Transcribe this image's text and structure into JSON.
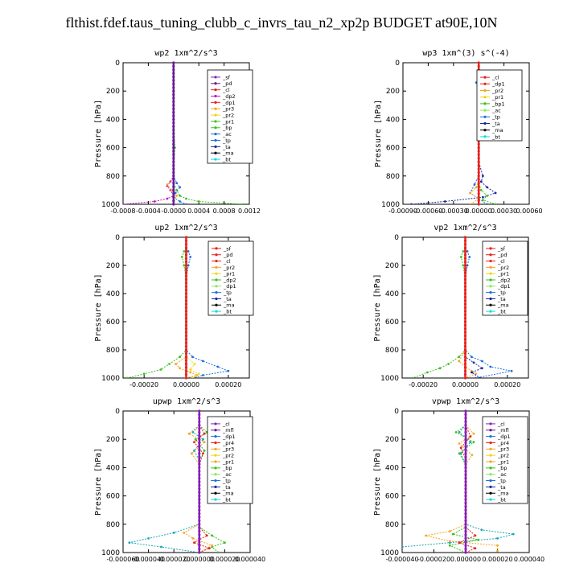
{
  "page": {
    "title": "flthist.fdef.taus_tuning_clubb_c_invrs_tau_n2_xp2p  BUDGET at90E,10N"
  },
  "colors": {
    "red": "#e8221c",
    "purple": "#8a1fb5",
    "dark_purple": "#6a1a9a",
    "orange": "#f5a623",
    "yellow": "#f0d51a",
    "green": "#3ac21a",
    "light_green": "#8fe85a",
    "blue": "#1e6fe0",
    "navy": "#1a2aa0",
    "teal": "#1aa6b8",
    "magenta": "#c41ac4",
    "black": "#000000",
    "cyan": "#19d8e8"
  },
  "chart_data": [
    {
      "type": "line",
      "title": "wp2  1xm^2/s^3",
      "ylabel": "Pressure [hPa]",
      "xlim": [
        -0.0008,
        0.0012
      ],
      "ylim": [
        1000,
        0
      ],
      "xticks": [
        "-0.0008",
        "-0.0004",
        "-0.0000",
        "0.0004",
        "0.0008",
        "0.0012"
      ],
      "xtick_values": [
        -0.0008,
        -0.0004,
        0.0,
        0.0004,
        0.0008,
        0.0012
      ],
      "yticks": [
        "0",
        "200",
        "400",
        "600",
        "800",
        "1000"
      ],
      "legend": [
        "_sf",
        "_pd",
        "_cl",
        "_dp2",
        "_dp1",
        "_pr3",
        "_pr2",
        "_pr1",
        "_bp",
        "_ac",
        "_tp",
        "_ta",
        "_ma",
        "_bt"
      ],
      "legend_colors": [
        "#8a1fb5",
        "#6a1a9a",
        "#e8221c",
        "#c41ac4",
        "#e8221c",
        "#f5a623",
        "#f0d51a",
        "#3ac21a",
        "#3ac21a",
        "#1e6fe0",
        "#1e6fe0",
        "#1a2aa0",
        "#000000",
        "#19d8e8"
      ],
      "series": [
        {
          "color": "#3ac21a",
          "x": [
            0,
            0,
            0,
            0,
            0,
            2e-05,
            0,
            0,
            0,
            0,
            5e-05,
            0.0001,
            0.0002,
            0.0004,
            0.0011
          ],
          "y": [
            0,
            100,
            150,
            200,
            400,
            600,
            780,
            800,
            820,
            850,
            900,
            940,
            960,
            980,
            1000
          ]
        },
        {
          "color": "#c41ac4",
          "x": [
            0,
            0,
            0,
            0,
            -5e-05,
            -0.0001,
            -5e-05,
            0,
            -0.0001,
            -0.0003,
            -0.0008
          ],
          "y": [
            0,
            200,
            600,
            800,
            840,
            870,
            900,
            940,
            960,
            980,
            1000
          ]
        },
        {
          "color": "#f5a623",
          "x": [
            0,
            0,
            0,
            -0.0001,
            -3e-05,
            5e-05,
            0,
            0
          ],
          "y": [
            0,
            400,
            820,
            860,
            900,
            940,
            980,
            1000
          ]
        },
        {
          "color": "#1e6fe0",
          "x": [
            0,
            0,
            5e-05,
            0.0001,
            3e-05,
            0,
            0.0001,
            0.0002
          ],
          "y": [
            0,
            800,
            850,
            880,
            920,
            950,
            980,
            1000
          ]
        },
        {
          "color": "#6a1a9a",
          "x": [
            0,
            0,
            0,
            0,
            0
          ],
          "y": [
            0,
            300,
            600,
            900,
            1000
          ]
        }
      ]
    },
    {
      "type": "line",
      "title": "wp3  1xm^(3) s^(-4)",
      "ylabel": "Pressure [hPa]",
      "xlim": [
        -0.0009,
        0.0006
      ],
      "ylim": [
        1000,
        0
      ],
      "xticks": [
        "-0.00090",
        "-0.00060",
        "-0.00030",
        "0.00000",
        "0.00030",
        "0.00060"
      ],
      "xtick_values": [
        -0.0009,
        -0.0006,
        -0.0003,
        0.0,
        0.0003,
        0.0006
      ],
      "yticks": [
        "0",
        "200",
        "400",
        "600",
        "800",
        "1000"
      ],
      "legend": [
        "_cl",
        "_dp1",
        "_pr2",
        "_pr1",
        "_bp1",
        "_ac",
        "_tp",
        "_ta",
        "_ma",
        "_bt"
      ],
      "legend_colors": [
        "#e8221c",
        "#e8221c",
        "#f5a623",
        "#f0d51a",
        "#3ac21a",
        "#8fe85a",
        "#1e6fe0",
        "#1a2aa0",
        "#000000",
        "#19d8e8"
      ],
      "series": [
        {
          "color": "#1a2aa0",
          "x": [
            0,
            0,
            3e-05,
            0,
            0,
            0,
            0,
            5e-05,
            3e-05,
            0.0001,
            0.0002,
            5e-05,
            -0.0004,
            -0.0008
          ],
          "y": [
            0,
            100,
            130,
            160,
            200,
            400,
            700,
            800,
            840,
            880,
            920,
            950,
            980,
            1000
          ]
        },
        {
          "color": "#1e6fe0",
          "x": [
            0,
            0,
            -3e-05,
            0,
            0,
            -5e-05,
            -0.0001,
            0,
            0.0001
          ],
          "y": [
            0,
            100,
            140,
            200,
            800,
            860,
            920,
            960,
            1000
          ]
        },
        {
          "color": "#f5a623",
          "x": [
            0,
            0,
            0,
            -3e-05,
            -0.0001,
            0,
            -0.0001
          ],
          "y": [
            0,
            500,
            840,
            880,
            920,
            960,
            1000
          ]
        },
        {
          "color": "#3ac21a",
          "x": [
            0,
            0,
            3e-05,
            0.0001,
            5e-05,
            0.0002
          ],
          "y": [
            0,
            850,
            900,
            940,
            970,
            1000
          ]
        },
        {
          "color": "#19d8e8",
          "x": [
            0,
            0,
            0,
            0
          ],
          "y": [
            0,
            300,
            700,
            1000
          ]
        },
        {
          "color": "#e8221c",
          "x": [
            0,
            0,
            0,
            0,
            0
          ],
          "y": [
            0,
            300,
            600,
            900,
            1000
          ]
        }
      ]
    },
    {
      "type": "line",
      "title": "up2  1xm^2/s^3",
      "ylabel": "Pressure [hPa]",
      "xlim": [
        -0.0003,
        0.0003
      ],
      "ylim": [
        1000,
        0
      ],
      "xticks": [
        "-0.00020",
        "0.00000",
        "0.00020"
      ],
      "xtick_values": [
        -0.0002,
        0.0,
        0.0002
      ],
      "yticks": [
        "0",
        "200",
        "400",
        "600",
        "800",
        "1000"
      ],
      "legend": [
        "_sf",
        "_pd",
        "_cl",
        "_pr2",
        "_pr1",
        "_dp2",
        "_dp1",
        "_tp",
        "_ta",
        "_ma",
        "_bt"
      ],
      "legend_colors": [
        "#e8221c",
        "#e8221c",
        "#e8221c",
        "#f5a623",
        "#f0d51a",
        "#3ac21a",
        "#8fe85a",
        "#1e6fe0",
        "#1a2aa0",
        "#000000",
        "#19d8e8"
      ],
      "series": [
        {
          "color": "#3ac21a",
          "x": [
            0,
            0,
            -1e-05,
            -2e-05,
            -1e-05,
            0,
            0,
            0,
            -3e-05,
            -8e-05,
            -0.00012,
            -0.0002,
            -0.00028
          ],
          "y": [
            0,
            80,
            100,
            140,
            200,
            300,
            700,
            800,
            850,
            900,
            940,
            970,
            1000
          ]
        },
        {
          "color": "#1e6fe0",
          "x": [
            0,
            0,
            1e-05,
            2e-05,
            1e-05,
            0,
            0,
            3e-05,
            8e-05,
            0.00015,
            0.0002,
            8e-05,
            3e-05
          ],
          "y": [
            0,
            80,
            100,
            140,
            200,
            300,
            800,
            850,
            880,
            920,
            950,
            980,
            1000
          ]
        },
        {
          "color": "#f5a623",
          "x": [
            0,
            0,
            0,
            -5e-05,
            -3e-05,
            2e-05,
            5e-05,
            0
          ],
          "y": [
            0,
            500,
            850,
            900,
            930,
            960,
            980,
            1000
          ]
        },
        {
          "color": "#f0d51a",
          "x": [
            0,
            0,
            4e-05,
            2e-05,
            6e-05,
            3e-05
          ],
          "y": [
            0,
            850,
            900,
            940,
            970,
            1000
          ]
        },
        {
          "color": "#e8221c",
          "x": [
            0,
            0,
            0,
            0,
            0
          ],
          "y": [
            0,
            300,
            600,
            900,
            1000
          ]
        }
      ]
    },
    {
      "type": "line",
      "title": "vp2  1xm^2/s^3",
      "ylabel": "Pressure [hPa]",
      "xlim": [
        -0.0003,
        0.0003
      ],
      "ylim": [
        1000,
        0
      ],
      "xticks": [
        "-0.00020",
        "0.00000",
        "0.00020"
      ],
      "xtick_values": [
        -0.0002,
        0.0,
        0.0002
      ],
      "yticks": [
        "0",
        "200",
        "400",
        "600",
        "800",
        "1000"
      ],
      "legend": [
        "_sf",
        "_pd",
        "_cl",
        "_pr2",
        "_pr1",
        "_dp2",
        "_dp1",
        "_tp",
        "_ta",
        "_ma",
        "_bt"
      ],
      "legend_colors": [
        "#e8221c",
        "#e8221c",
        "#e8221c",
        "#f5a623",
        "#f0d51a",
        "#3ac21a",
        "#8fe85a",
        "#1e6fe0",
        "#1a2aa0",
        "#000000",
        "#19d8e8"
      ],
      "series": [
        {
          "color": "#3ac21a",
          "x": [
            0,
            0,
            -1e-05,
            -2e-05,
            -1e-05,
            0,
            0,
            -3e-05,
            -8e-05,
            -0.00012,
            -0.00018,
            -0.00025
          ],
          "y": [
            0,
            80,
            100,
            140,
            200,
            300,
            800,
            850,
            900,
            930,
            960,
            1000
          ]
        },
        {
          "color": "#1e6fe0",
          "x": [
            0,
            0,
            1e-05,
            2e-05,
            1e-05,
            0,
            0,
            3e-05,
            8e-05,
            0.00012,
            0.00022,
            5e-05
          ],
          "y": [
            0,
            80,
            100,
            140,
            200,
            300,
            800,
            850,
            880,
            920,
            950,
            1000
          ]
        },
        {
          "color": "#f5a623",
          "x": [
            0,
            0,
            -3e-05,
            0,
            3e-05,
            5e-05,
            0
          ],
          "y": [
            0,
            800,
            880,
            920,
            950,
            970,
            1000
          ]
        },
        {
          "color": "#1a2aa0",
          "x": [
            0,
            0,
            4e-05,
            8e-05,
            3e-05,
            7e-05
          ],
          "y": [
            0,
            850,
            890,
            930,
            960,
            1000
          ]
        },
        {
          "color": "#e8221c",
          "x": [
            0,
            0,
            0,
            0,
            0
          ],
          "y": [
            0,
            300,
            600,
            900,
            1000
          ]
        }
      ]
    },
    {
      "type": "line",
      "title": "upwp  1xm^2/s^3",
      "ylabel": "Pressure [hPa]",
      "xlim": [
        -6e-05,
        4e-05
      ],
      "ylim": [
        1000,
        0
      ],
      "xticks": [
        "-0.000060",
        "-0.000040",
        "-0.000020",
        "0.000000",
        "0.000020",
        "0.000040"
      ],
      "xtick_values": [
        -6e-05,
        -4e-05,
        -2e-05,
        0.0,
        2e-05,
        4e-05
      ],
      "yticks": [
        "0",
        "200",
        "400",
        "600",
        "800",
        "1000"
      ],
      "legend": [
        "_cl",
        "_mfl",
        "_dp1",
        "_pr4",
        "_pr3",
        "_pr2",
        "_pr1",
        "_bp",
        "_ac",
        "_tp",
        "_ta",
        "_ma",
        "_bt"
      ],
      "legend_colors": [
        "#8a1fb5",
        "#6a1a9a",
        "#1e6fe0",
        "#e8221c",
        "#f5a623",
        "#f0d51a",
        "#f5a623",
        "#3ac21a",
        "#8fe85a",
        "#1e6fe0",
        "#1a2aa0",
        "#000000",
        "#19d8e8"
      ],
      "series": [
        {
          "color": "#1aa6b8",
          "x": [
            0,
            0,
            -5e-06,
            3e-06,
            -4e-06,
            0,
            0,
            -2e-05,
            -4e-05,
            -5.5e-05,
            -3e-05,
            0
          ],
          "y": [
            0,
            100,
            150,
            200,
            280,
            350,
            800,
            860,
            900,
            930,
            960,
            1000
          ]
        },
        {
          "color": "#3ac21a",
          "x": [
            0,
            0,
            6e-06,
            -3e-06,
            4e-06,
            0,
            0,
            1e-05,
            2e-05,
            1e-05,
            1.5e-05
          ],
          "y": [
            0,
            100,
            150,
            200,
            280,
            350,
            820,
            880,
            930,
            960,
            1000
          ]
        },
        {
          "color": "#f5a623",
          "x": [
            0,
            0,
            -8e-06,
            4e-06,
            -6e-06,
            0,
            0,
            -1.2e-05,
            -5e-06,
            1e-05,
            0
          ],
          "y": [
            0,
            100,
            160,
            220,
            300,
            380,
            800,
            860,
            900,
            950,
            1000
          ]
        },
        {
          "color": "#e8221c",
          "x": [
            0,
            0,
            4e-06,
            -4e-06,
            3e-06,
            0,
            0,
            6e-06,
            -4e-06,
            8e-06,
            0
          ],
          "y": [
            0,
            100,
            160,
            220,
            300,
            380,
            820,
            880,
            930,
            970,
            1000
          ]
        },
        {
          "color": "#8a1fb5",
          "x": [
            0,
            0,
            0,
            0,
            0
          ],
          "y": [
            0,
            300,
            600,
            900,
            1000
          ]
        }
      ]
    },
    {
      "type": "line",
      "title": "vpwp  1xm^2/s^3",
      "ylabel": "Pressure [hPa]",
      "xlim": [
        -4e-05,
        4e-05
      ],
      "ylim": [
        1000,
        0
      ],
      "xticks": [
        "-0.000040",
        "-0.000020",
        "0.000000",
        "0.000020",
        "0.000040"
      ],
      "xtick_values": [
        -4e-05,
        -2e-05,
        0.0,
        2e-05,
        4e-05
      ],
      "yticks": [
        "0",
        "200",
        "400",
        "600",
        "800",
        "1000"
      ],
      "legend": [
        "_cl",
        "_mfl",
        "_dp1",
        "_pr4",
        "_pr3",
        "_pr2",
        "_pr1",
        "_bp",
        "_ac",
        "_tp",
        "_ta",
        "_ma",
        "_bt"
      ],
      "legend_colors": [
        "#8a1fb5",
        "#6a1a9a",
        "#1e6fe0",
        "#e8221c",
        "#f5a623",
        "#f0d51a",
        "#f5a623",
        "#3ac21a",
        "#8fe85a",
        "#1e6fe0",
        "#1a2aa0",
        "#000000",
        "#19d8e8"
      ],
      "series": [
        {
          "color": "#1aa6b8",
          "x": [
            0,
            0,
            -4e-06,
            3e-06,
            -3e-06,
            0,
            0,
            1e-05,
            3e-05,
            2e-05,
            -1e-05,
            -4e-05
          ],
          "y": [
            0,
            100,
            150,
            220,
            300,
            380,
            800,
            840,
            870,
            900,
            930,
            960
          ]
        },
        {
          "color": "#f5a623",
          "x": [
            0,
            0,
            5e-06,
            -4e-06,
            4e-06,
            0,
            0,
            -1e-05,
            -2.5e-05,
            -1e-05,
            2e-05,
            2e-05
          ],
          "y": [
            0,
            100,
            160,
            230,
            310,
            380,
            800,
            850,
            880,
            920,
            950,
            990
          ]
        },
        {
          "color": "#3ac21a",
          "x": [
            0,
            0,
            -6e-06,
            5e-06,
            -4e-06,
            0,
            0,
            -8e-06,
            8e-06,
            -1e-05,
            0
          ],
          "y": [
            0,
            100,
            150,
            220,
            300,
            380,
            820,
            870,
            910,
            950,
            1000
          ]
        },
        {
          "color": "#e8221c",
          "x": [
            0,
            0,
            3e-06,
            -3e-06,
            0,
            0,
            6e-06,
            -4e-06,
            6e-06,
            0
          ],
          "y": [
            0,
            100,
            180,
            260,
            340,
            820,
            880,
            930,
            970,
            1000
          ]
        },
        {
          "color": "#8a1fb5",
          "x": [
            0,
            0,
            0,
            0,
            0
          ],
          "y": [
            0,
            300,
            600,
            900,
            1000
          ]
        }
      ]
    }
  ]
}
